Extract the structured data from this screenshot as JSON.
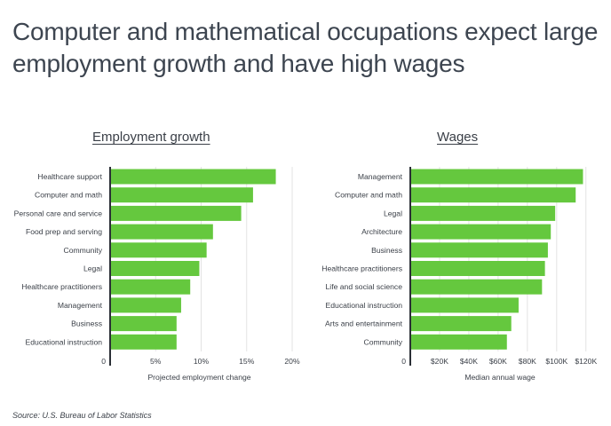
{
  "title": "Computer and mathematical occupations expect large employment growth and have high wages",
  "source": "Source:  U.S. Bureau of Labor Statistics",
  "colors": {
    "bar": "#65c83e",
    "axis": "#2b2f36",
    "grid": "#e3e3e3",
    "text": "#3a3f47"
  },
  "chart_data": [
    {
      "type": "bar",
      "orientation": "horizontal",
      "title": "Employment growth",
      "xlabel": "Projected employment change",
      "categories": [
        "Healthcare support",
        "Computer and math",
        "Personal care and service",
        "Food prep and serving",
        "Community",
        "Legal",
        "Healthcare practitioners",
        "Management",
        "Business",
        "Educational instruction"
      ],
      "values": [
        18.2,
        15.7,
        14.4,
        11.3,
        10.6,
        9.8,
        8.8,
        7.8,
        7.3,
        7.3
      ],
      "xlim": [
        0,
        20
      ],
      "ticks": [
        0,
        5,
        10,
        15,
        20
      ],
      "tick_labels": [
        "0",
        "5%",
        "10%",
        "15%",
        "20%"
      ],
      "grid": true
    },
    {
      "type": "bar",
      "orientation": "horizontal",
      "title": "Wages",
      "xlabel": "Median annual wage",
      "categories": [
        "Management",
        "Computer and math",
        "Legal",
        "Architecture",
        "Business",
        "Healthcare practitioners",
        "Life and social science",
        "Educational instruction",
        "Arts and entertainment",
        "Community"
      ],
      "values": [
        118000,
        113000,
        99000,
        96000,
        94000,
        92000,
        90000,
        74000,
        69000,
        66000
      ],
      "xlim": [
        0,
        125000
      ],
      "ticks": [
        0,
        20000,
        40000,
        60000,
        80000,
        100000,
        120000
      ],
      "tick_labels": [
        "0",
        "$20K",
        "$40K",
        "$60K",
        "$80K",
        "$100K",
        "$120K"
      ],
      "grid": true
    }
  ]
}
